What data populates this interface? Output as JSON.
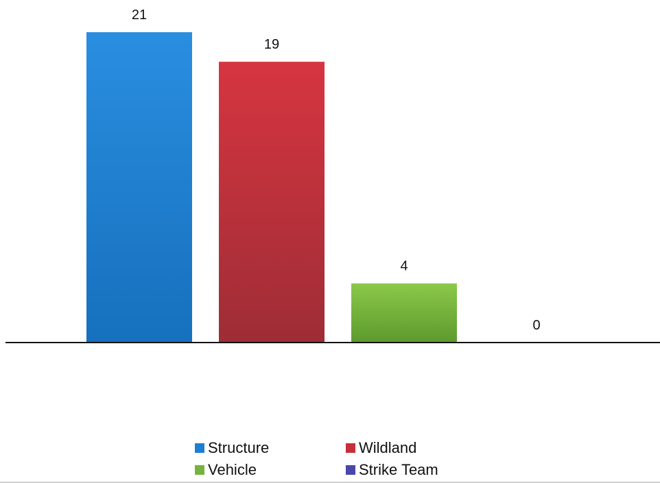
{
  "chart_data": {
    "type": "bar",
    "categories": [
      "Structure",
      "Wildland",
      "Vehicle",
      "Strike Team"
    ],
    "values": [
      21,
      19,
      4,
      0
    ],
    "colors": [
      "#1e7fd0",
      "#c6303a",
      "#76b33c",
      "#4b47a8"
    ],
    "title": "",
    "xlabel": "",
    "ylabel": "",
    "ylim": [
      0,
      21
    ],
    "grid": false,
    "legend_position": "bottom",
    "legend": [
      "Structure",
      "Wildland",
      "Vehicle",
      "Strike Team"
    ]
  }
}
